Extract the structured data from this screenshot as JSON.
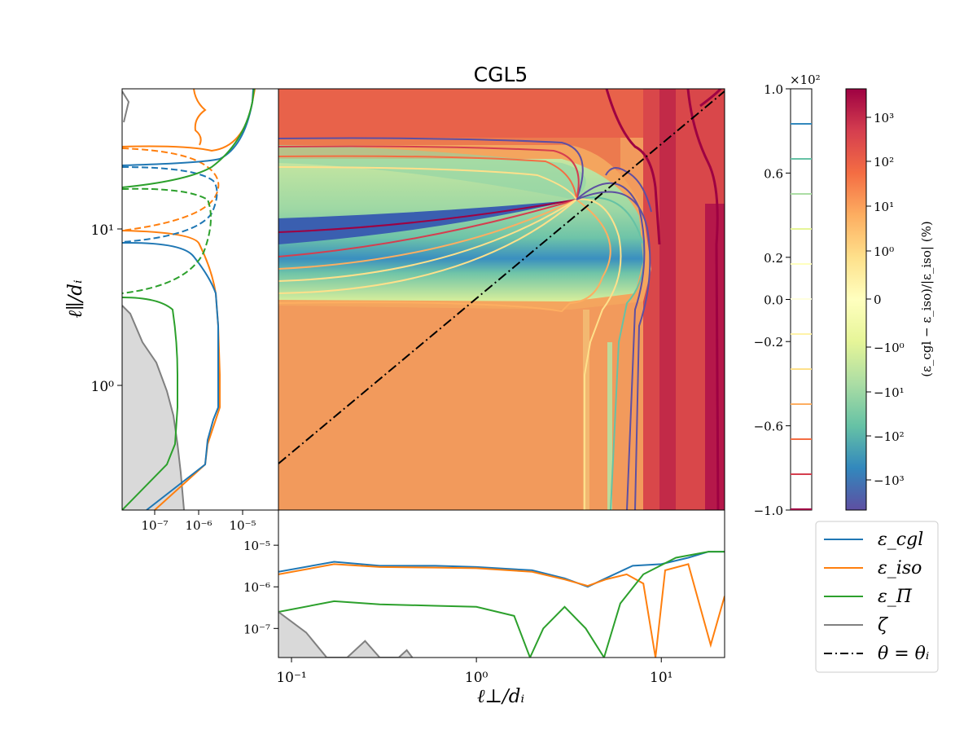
{
  "chart_data": [
    {
      "type": "heatmap",
      "title": "CGL5",
      "xlabel": "ℓ⊥/dᵢ",
      "ylabel": "ℓ∥/dᵢ",
      "xscale": "log",
      "yscale": "log",
      "xlim": [
        0.085,
        22
      ],
      "ylim": [
        0.17,
        90
      ],
      "xticks": [
        "10⁻¹",
        "10⁰",
        "10¹"
      ],
      "yticks": [
        "10⁰",
        "10¹"
      ],
      "colorbar": {
        "label": "(ε_cgl − ε_iso)/|ε_iso| (%)",
        "ticks": [
          "10³",
          "10²",
          "10¹",
          "10⁰",
          "0",
          "−10⁰",
          "−10¹",
          "−10²",
          "−10³"
        ]
      },
      "contour_levels_bar": {
        "scale_label": "×10²",
        "ticks": [
          "1.0",
          "0.6",
          "0.2",
          "0.0",
          "−0.2",
          "−0.6",
          "−1.0"
        ]
      },
      "overlay_line": {
        "name": "θ = θᵢ",
        "style": "dash-dot"
      }
    },
    {
      "type": "line",
      "panel": "bottom",
      "xscale": "log",
      "yscale": "log",
      "xlim": [
        0.085,
        22
      ],
      "ylim": [
        2e-08,
        7e-05
      ],
      "yticks": [
        "10⁻⁷",
        "10⁻⁶",
        "10⁻⁵"
      ],
      "series": [
        {
          "name": "ε_cgl",
          "color": "#1f77b4",
          "x": [
            0.085,
            0.17,
            0.3,
            0.6,
            1.0,
            2.0,
            3.0,
            4.0,
            5.0,
            7.0,
            10.0,
            14.0,
            18.0,
            22.0
          ],
          "y": [
            2.3e-06,
            4e-06,
            3.2e-06,
            3.2e-06,
            3e-06,
            2.5e-06,
            1.6e-06,
            1e-06,
            1.6e-06,
            3.2e-06,
            3.5e-06,
            5e-06,
            7e-06,
            7e-06
          ]
        },
        {
          "name": "ε_iso",
          "color": "#ff7f0e",
          "x": [
            0.085,
            0.17,
            0.3,
            0.6,
            1.0,
            2.0,
            3.0,
            4.0,
            5.0,
            6.5,
            8.0,
            9.3,
            10.5,
            14.0,
            18.5,
            22.0
          ],
          "y": [
            2e-06,
            3.5e-06,
            3e-06,
            2.9e-06,
            2.8e-06,
            2.3e-06,
            1.5e-06,
            1.05e-06,
            1.5e-06,
            2e-06,
            1.2e-06,
            2e-08,
            2.5e-06,
            3.5e-06,
            4e-08,
            6e-07
          ]
        },
        {
          "name": "ε_Π̄",
          "color": "#2ca02c",
          "x": [
            0.085,
            0.17,
            0.3,
            0.6,
            1.0,
            1.6,
            1.95,
            2.3,
            3.0,
            3.9,
            4.9,
            6.0,
            8.0,
            12.0,
            18.0,
            22.0
          ],
          "y": [
            2.5e-07,
            4.5e-07,
            3.8e-07,
            3.5e-07,
            3.3e-07,
            2e-07,
            2e-08,
            1e-07,
            3.3e-07,
            1e-07,
            2e-08,
            4e-07,
            2e-06,
            5e-06,
            7e-06,
            7e-06
          ]
        },
        {
          "name": "ζ",
          "color": "#808080",
          "x": [
            0.085,
            0.12,
            0.155,
            0.2,
            0.25,
            0.3,
            0.38,
            0.42,
            0.45
          ],
          "y": [
            2.5e-07,
            8e-08,
            2e-08,
            2e-08,
            5e-08,
            2e-08,
            2e-08,
            3e-08,
            2e-08
          ]
        }
      ]
    },
    {
      "type": "line",
      "panel": "left",
      "xscale": "log",
      "yscale": "log",
      "xticks": [
        "10⁻⁷",
        "10⁻⁶",
        "10⁻⁵"
      ]
    }
  ],
  "legend": {
    "entries": [
      {
        "label": "ε_cgl",
        "color": "#1f77b4",
        "style": "solid"
      },
      {
        "label": "ε_iso",
        "color": "#ff7f0e",
        "style": "solid"
      },
      {
        "label": "ε_Π̄",
        "color": "#2ca02c",
        "style": "solid"
      },
      {
        "label": "ζ",
        "color": "#808080",
        "style": "solid"
      },
      {
        "label": "θ = θᵢ",
        "color": "#000000",
        "style": "dash-dot"
      }
    ]
  }
}
